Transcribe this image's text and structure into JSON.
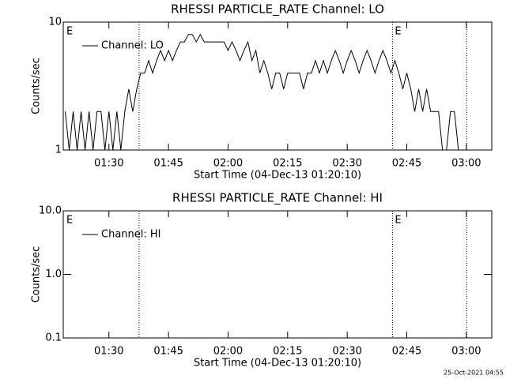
{
  "chart_data": [
    {
      "type": "line",
      "title": "RHESSI PARTICLE_RATE Channel: LO",
      "xlabel": "Start Time (04-Dec-13 01:20:10)",
      "ylabel": "Counts/sec",
      "log_y": true,
      "xlim": [
        78.5,
        186.4
      ],
      "ylim": [
        1,
        10
      ],
      "xticks": [
        {
          "value": 90,
          "label": "01:30"
        },
        {
          "value": 105,
          "label": "01:45"
        },
        {
          "value": 120,
          "label": "02:00"
        },
        {
          "value": 135,
          "label": "02:15"
        },
        {
          "value": 150,
          "label": "02:30"
        },
        {
          "value": 165,
          "label": "02:45"
        },
        {
          "value": 180,
          "label": "03:00"
        }
      ],
      "yticks": [
        1,
        10
      ],
      "vlines": [
        97.6,
        161.4,
        180.1
      ],
      "annotations": [
        {
          "text": "E",
          "x": 79.3
        },
        {
          "text": "E",
          "x": 162
        }
      ],
      "x": [
        79,
        80,
        81,
        82,
        83,
        84,
        85,
        86,
        87,
        88,
        89,
        90,
        91,
        92,
        93,
        94,
        95,
        96,
        97,
        98,
        99,
        100,
        101,
        102,
        103,
        104,
        105,
        106,
        107,
        108,
        109,
        110,
        111,
        112,
        113,
        114,
        115,
        116,
        117,
        118,
        119,
        120,
        121,
        122,
        123,
        124,
        125,
        126,
        127,
        128,
        129,
        130,
        131,
        132,
        133,
        134,
        135,
        136,
        137,
        138,
        139,
        140,
        141,
        142,
        143,
        144,
        145,
        146,
        147,
        148,
        149,
        150,
        151,
        152,
        153,
        154,
        155,
        156,
        157,
        158,
        159,
        160,
        161,
        162,
        163,
        164,
        165,
        166,
        167,
        168,
        169,
        170,
        171,
        172,
        173,
        174,
        175,
        176,
        177,
        178,
        179,
        180
      ],
      "series": [
        {
          "name": "Channel: LO",
          "color": "#000000",
          "values": [
            2,
            1,
            2,
            1,
            2,
            1,
            2,
            1,
            2,
            2,
            1,
            2,
            1,
            2,
            1,
            2,
            3,
            2,
            3,
            4,
            4,
            5,
            4,
            5,
            6,
            5,
            6,
            5,
            6,
            7,
            7,
            8,
            8,
            7,
            8,
            7,
            7,
            7,
            7,
            7,
            7,
            6,
            7,
            6,
            5,
            6,
            7,
            5,
            6,
            4,
            5,
            4,
            3,
            4,
            4,
            3,
            4,
            4,
            4,
            4,
            3,
            4,
            4,
            5,
            4,
            5,
            4,
            5,
            6,
            5,
            4,
            5,
            6,
            5,
            4,
            5,
            6,
            5,
            4,
            5,
            6,
            5,
            4,
            5,
            4,
            3,
            4,
            3,
            2,
            3,
            2,
            3,
            2,
            2,
            2,
            1,
            1,
            2,
            2,
            1,
            1,
            1
          ]
        }
      ]
    },
    {
      "type": "line",
      "title": "RHESSI PARTICLE_RATE Channel: HI",
      "xlabel": "Start Time (04-Dec-13 01:20:10)",
      "ylabel": "Counts/sec",
      "log_y": true,
      "xlim": [
        78.5,
        186.4
      ],
      "ylim": [
        0.1,
        10
      ],
      "xticks": [
        {
          "value": 90,
          "label": "01:30"
        },
        {
          "value": 105,
          "label": "01:45"
        },
        {
          "value": 120,
          "label": "02:00"
        },
        {
          "value": 135,
          "label": "02:15"
        },
        {
          "value": 150,
          "label": "02:30"
        },
        {
          "value": 165,
          "label": "02:45"
        },
        {
          "value": 180,
          "label": "03:00"
        }
      ],
      "yticks": [
        {
          "value": 0.1,
          "label": "0.1"
        },
        {
          "value": 1,
          "label": "1.0"
        },
        {
          "value": 10,
          "label": "10.0"
        }
      ],
      "vlines": [
        97.6,
        161.4,
        180.1
      ],
      "annotations": [
        {
          "text": "E",
          "x": 79.3
        },
        {
          "text": "E",
          "x": 162
        }
      ],
      "x": [],
      "series": [
        {
          "name": "Channel: HI",
          "color": "#000000",
          "values": []
        }
      ]
    }
  ],
  "footer": "25-Oct-2021 04:55"
}
